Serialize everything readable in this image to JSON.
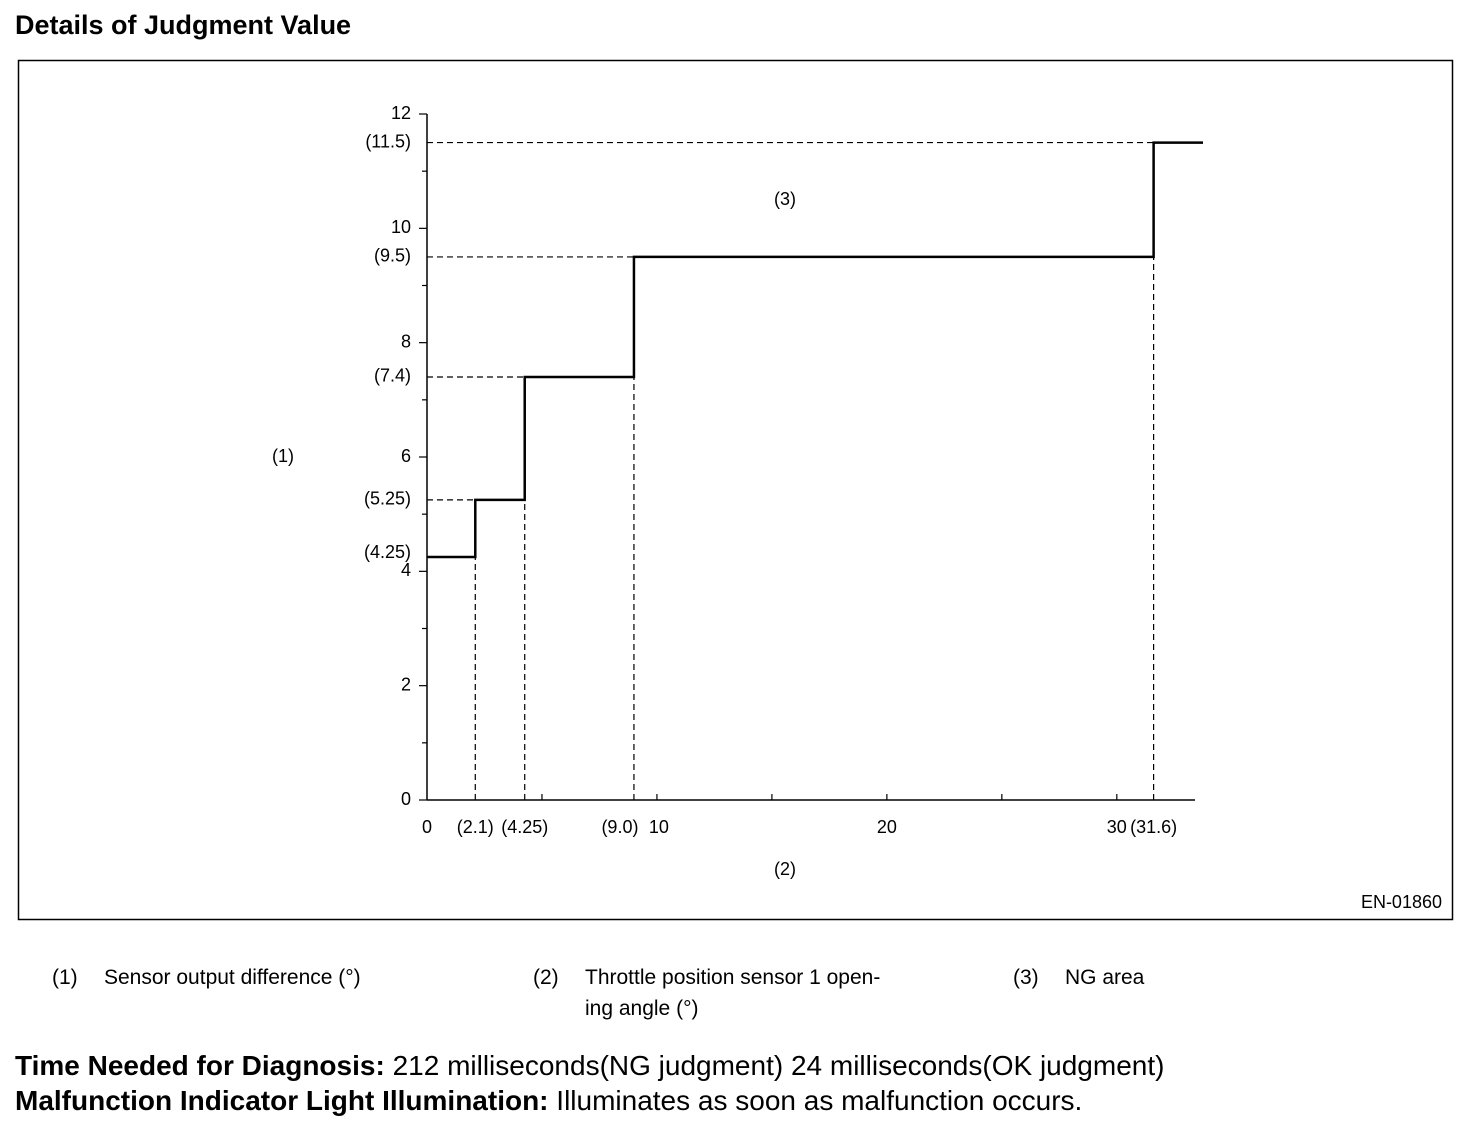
{
  "title": "Details of Judgment Value",
  "chart_data": {
    "type": "step",
    "ylabel": "(1)",
    "xlabel": "(2)",
    "annotation": "(3)",
    "code": "EN-01860",
    "x": [
      0,
      2.1,
      4.25,
      9.0,
      31.6
    ],
    "values": [
      4.25,
      5.25,
      7.4,
      9.5,
      11.5
    ],
    "color": "#000000",
    "xlim": [
      0,
      33.4
    ],
    "ylim": [
      0,
      12
    ],
    "xticks": [
      0,
      {
        "value": 2.1,
        "label": "(2.1)"
      },
      {
        "value": 4.25,
        "label": "(4.25)"
      },
      {
        "value": 9.0,
        "label": "(9.0)"
      },
      10,
      20,
      30,
      {
        "value": 31.6,
        "label": "(31.6)"
      }
    ],
    "xminor": [
      5,
      15,
      25
    ],
    "yticks": [
      0,
      2,
      4,
      {
        "value": 4.25,
        "label": "(4.25)"
      },
      {
        "value": 5.25,
        "label": "(5.25)"
      },
      6,
      {
        "value": 7.4,
        "label": "(7.4)"
      },
      8,
      {
        "value": 9.5,
        "label": "(9.5)"
      },
      10,
      {
        "value": 11.5,
        "label": "(11.5)"
      },
      12
    ],
    "yminor": [
      1,
      3,
      5,
      7,
      9,
      11
    ]
  },
  "legend": [
    {
      "num": "(1)",
      "lines": [
        "Sensor output difference (°)"
      ]
    },
    {
      "num": "(2)",
      "lines": [
        "Throttle position sensor 1 open-",
        "ing angle (°)"
      ]
    },
    {
      "num": "(3)",
      "lines": [
        "NG area"
      ]
    }
  ],
  "notes": [
    {
      "label": "Time Needed for Diagnosis:",
      "text": " 212 milliseconds(NG judgment) 24 milliseconds(OK judgment)"
    },
    {
      "label": "Malfunction Indicator Light Illumination:",
      "text": " Illuminates as soon as malfunction occurs."
    }
  ]
}
